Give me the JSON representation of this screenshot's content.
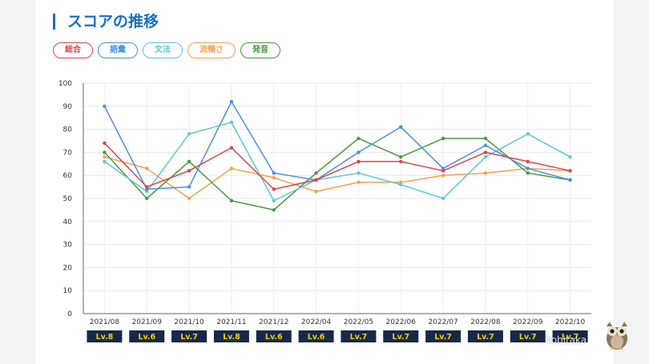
{
  "page": {
    "title": "スコアの推移"
  },
  "legend": [
    {
      "label": "総合",
      "color": "#e0424b"
    },
    {
      "label": "語彙",
      "color": "#4a90e2"
    },
    {
      "label": "文法",
      "color": "#5bc8d6"
    },
    {
      "label": "流暢さ",
      "color": "#f5a14d"
    },
    {
      "label": "発音",
      "color": "#4a9a3f"
    }
  ],
  "watermark": "tobitaka",
  "chart_data": {
    "type": "line",
    "categories": [
      "2021/08",
      "2021/09",
      "2021/10",
      "2021/11",
      "2021/12",
      "2022/04",
      "2022/05",
      "2022/06",
      "2022/07",
      "2022/08",
      "2022/09",
      "2022/10"
    ],
    "levels": [
      "Lv.8",
      "Lv.6",
      "Lv.7",
      "Lv.8",
      "Lv.6",
      "Lv.6",
      "Lv.7",
      "Lv.7",
      "Lv.7",
      "Lv.7",
      "Lv.7",
      "Lv.7"
    ],
    "ylim": [
      0,
      100
    ],
    "yticks": [
      0,
      10,
      20,
      30,
      40,
      50,
      60,
      70,
      80,
      90,
      100
    ],
    "grid": true,
    "series": [
      {
        "name": "流暢さ",
        "color": "#f5a14d",
        "values": [
          68,
          63,
          50,
          63,
          59,
          53,
          57,
          57,
          60,
          61,
          63,
          62
        ]
      },
      {
        "name": "発音",
        "color": "#4a9a3f",
        "values": [
          70,
          50,
          66,
          49,
          45,
          61,
          76,
          68,
          76,
          76,
          61,
          58
        ]
      },
      {
        "name": "文法",
        "color": "#5bc8d6",
        "values": [
          66,
          53,
          78,
          83,
          49,
          58,
          61,
          56,
          50,
          68,
          78,
          68
        ]
      },
      {
        "name": "語彙",
        "color": "#4a90e2",
        "values": [
          90,
          54,
          55,
          92,
          61,
          58,
          70,
          81,
          63,
          73,
          63,
          58
        ]
      },
      {
        "name": "総合",
        "color": "#e0424b",
        "values": [
          74,
          55,
          62,
          72,
          54,
          58,
          66,
          66,
          62,
          70,
          66,
          62
        ]
      }
    ]
  }
}
